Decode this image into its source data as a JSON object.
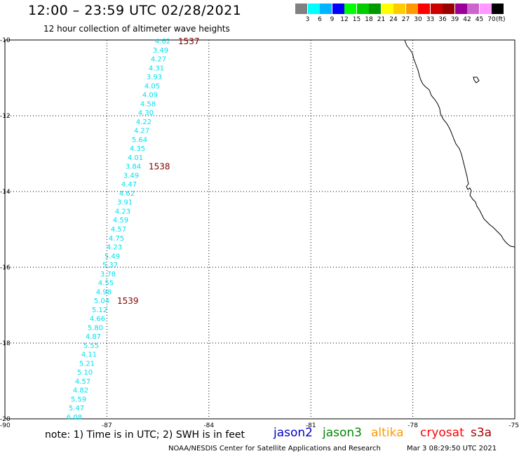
{
  "header": {
    "title": "12:00 – 23:59 UTC 02/28/2021",
    "subtitle": "12 hour collection of altimeter wave heights"
  },
  "color_scale": {
    "unit": "(ft)",
    "swatches": [
      "#808080",
      "#00ffff",
      "#00b4ff",
      "#0000ff",
      "#00ff00",
      "#00cc00",
      "#009900",
      "#ffff00",
      "#ffcc00",
      "#ff9900",
      "#ff0000",
      "#cc0000",
      "#990000",
      "#990099",
      "#cc66cc",
      "#ff99ff",
      "#000000"
    ],
    "labels": [
      "3",
      "6",
      "9",
      "12",
      "15",
      "18",
      "21",
      "24",
      "27",
      "30",
      "33",
      "36",
      "39",
      "42",
      "45",
      "70"
    ]
  },
  "map": {
    "lat_labels": [
      "-10",
      "-12",
      "-14",
      "-16",
      "-18",
      "-20"
    ],
    "lon_labels": [
      "-90",
      "-87",
      "-84",
      "-81",
      "-78",
      "-75"
    ],
    "track_color": "#00e0f0",
    "label_color": "#800000",
    "wave_heights": [
      "4.62",
      "3.49",
      "4.27",
      "4.31",
      "3.93",
      "4.05",
      "4.09",
      "4.58",
      "4.30",
      "4.22",
      "4.27",
      "5.64",
      "4.35",
      "4.01",
      "3.84",
      "3.49",
      "4.47",
      "4.62",
      "3.91",
      "4.23",
      "4.59",
      "4.57",
      "4.75",
      "4.23",
      "5.49",
      "5.37",
      "3.78",
      "4.55",
      "4.98",
      "5.04",
      "5.12",
      "4.66",
      "5.80",
      "4.87",
      "5.55",
      "4.11",
      "5.21",
      "5.10",
      "4.57",
      "4.82",
      "5.59",
      "5.47",
      "6.08"
    ],
    "time_labels": [
      {
        "text": "1537",
        "index": 0
      },
      {
        "text": "1538",
        "index": 14
      },
      {
        "text": "1539",
        "index": 29
      }
    ]
  },
  "footer": {
    "note": "note: 1) Time is in UTC; 2) SWH is in feet",
    "satellites": [
      {
        "name": "jason2",
        "color": "#0000cc"
      },
      {
        "name": "jason3",
        "color": "#008800"
      },
      {
        "name": "altika",
        "color": "#ff9900"
      },
      {
        "name": "cryosat",
        "color": "#ff0000"
      },
      {
        "name": "s3a",
        "color": "#aa0000"
      }
    ],
    "credit": "NOAA/NESDIS Center for Satellite Applications and Research",
    "timestamp": "Mar 3 08:29:50 UTC 2021"
  }
}
